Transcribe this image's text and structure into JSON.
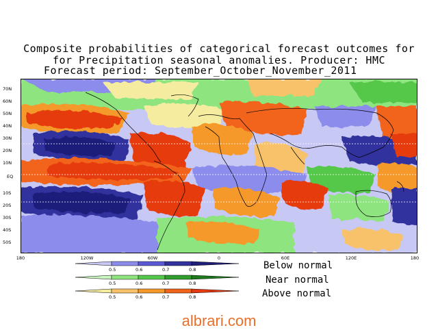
{
  "title": {
    "line1": "Composite probabilities of categorical forecast outcomes for",
    "line2": "for Precipitation seasonal anomalies. Producer: HMC",
    "line3": "Forecast period:  September_October_November_2011"
  },
  "map": {
    "lat_labels": [
      "70N",
      "60N",
      "50N",
      "40N",
      "30N",
      "20N",
      "10N",
      "EQ",
      "10S",
      "20S",
      "30S",
      "40S",
      "50S"
    ],
    "lon_labels": [
      "180",
      "120W",
      "60W",
      "0",
      "60E",
      "120E",
      "180"
    ]
  },
  "legend": {
    "ticks": [
      "0.5",
      "0.6",
      "0.7",
      "0.8"
    ],
    "rows": [
      {
        "label": "Below normal",
        "colors": [
          "#c8c8f5",
          "#8c8cec",
          "#5a5ad6",
          "#32329e",
          "#1f1f7a"
        ]
      },
      {
        "label": "Near normal",
        "colors": [
          "#c9f5c0",
          "#8ee47f",
          "#55c74a",
          "#2f9e2c",
          "#1f7a1f"
        ]
      },
      {
        "label": "Above normal",
        "colors": [
          "#f6eca0",
          "#f8c26a",
          "#f59a2a",
          "#f2641a",
          "#e53a10"
        ]
      }
    ]
  },
  "watermark": "albrari.com"
}
